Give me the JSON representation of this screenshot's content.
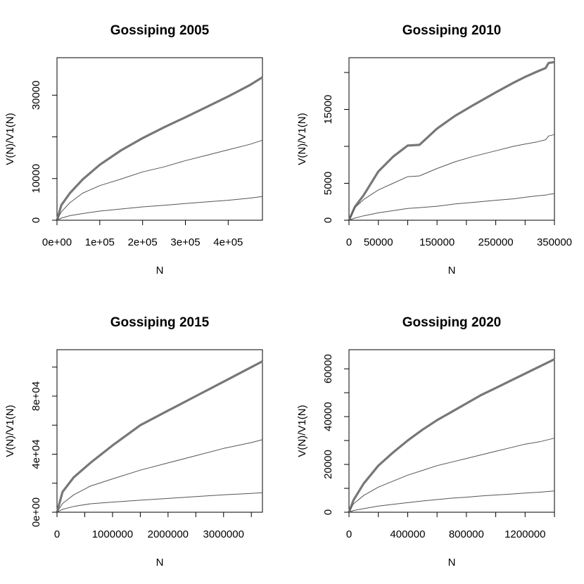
{
  "chart_data": [
    {
      "type": "line",
      "title": "Gossiping 2005",
      "xlabel": "N",
      "ylabel": "V(N)/V1(N)",
      "xlim": [
        0,
        480000
      ],
      "ylim": [
        0,
        39000
      ],
      "xticks": [
        0,
        100000,
        200000,
        300000,
        400000
      ],
      "xtick_labels": [
        "0e+00",
        "1e+05",
        "2e+05",
        "3e+05",
        "4e+05"
      ],
      "yticks": [
        0,
        10000,
        20000,
        30000
      ],
      "ytick_labels": [
        "0",
        "10000",
        "",
        "30000"
      ],
      "grid": false,
      "series": [
        {
          "x": [
            0,
            10000,
            30000,
            60000,
            100000,
            150000,
            200000,
            250000,
            300000,
            350000,
            400000,
            450000,
            480000
          ],
          "values": [
            0,
            3600,
            6500,
            9800,
            13300,
            16800,
            19700,
            22300,
            24700,
            27200,
            29700,
            32400,
            34300
          ],
          "color": "#777777",
          "width": 3.2
        },
        {
          "x": [
            0,
            10000,
            30000,
            60000,
            100000,
            150000,
            200000,
            250000,
            300000,
            350000,
            400000,
            450000,
            480000
          ],
          "values": [
            0,
            2000,
            4200,
            6500,
            8300,
            9900,
            11600,
            12800,
            14300,
            15600,
            16900,
            18200,
            19200
          ],
          "color": "#555555",
          "width": 1
        },
        {
          "x": [
            0,
            10000,
            30000,
            60000,
            100000,
            150000,
            200000,
            250000,
            300000,
            350000,
            400000,
            450000,
            480000
          ],
          "values": [
            0,
            500,
            1100,
            1600,
            2200,
            2700,
            3200,
            3600,
            4000,
            4400,
            4800,
            5300,
            5700
          ],
          "color": "#555555",
          "width": 1
        }
      ]
    },
    {
      "type": "line",
      "title": "Gossiping 2010",
      "xlabel": "N",
      "ylabel": "V(N)/V1(N)",
      "xlim": [
        0,
        350000
      ],
      "ylim": [
        0,
        22000
      ],
      "xticks": [
        0,
        50000,
        100000,
        150000,
        200000,
        250000,
        300000,
        350000
      ],
      "xtick_labels": [
        "0",
        "50000",
        "",
        "150000",
        "",
        "250000",
        "",
        "350000"
      ],
      "yticks": [
        0,
        5000,
        10000,
        15000,
        20000
      ],
      "ytick_labels": [
        "0",
        "5000",
        "",
        "15000",
        ""
      ],
      "grid": false,
      "series": [
        {
          "x": [
            0,
            10000,
            25000,
            50000,
            75000,
            100000,
            120000,
            150000,
            180000,
            210000,
            250000,
            280000,
            300000,
            320000,
            335000,
            340000,
            350000
          ],
          "values": [
            0,
            1800,
            3400,
            6600,
            8600,
            10100,
            10200,
            12400,
            14100,
            15500,
            17300,
            18600,
            19400,
            20100,
            20600,
            21300,
            21400
          ],
          "color": "#777777",
          "width": 3.2
        },
        {
          "x": [
            0,
            10000,
            25000,
            50000,
            75000,
            100000,
            120000,
            150000,
            180000,
            210000,
            250000,
            280000,
            300000,
            320000,
            335000,
            340000,
            350000
          ],
          "values": [
            0,
            1700,
            2800,
            4100,
            5000,
            5900,
            6000,
            7000,
            7900,
            8600,
            9400,
            10000,
            10300,
            10600,
            10900,
            11400,
            11600
          ],
          "color": "#555555",
          "width": 1
        },
        {
          "x": [
            0,
            10000,
            25000,
            50000,
            75000,
            100000,
            120000,
            150000,
            180000,
            210000,
            250000,
            280000,
            300000,
            320000,
            335000,
            340000,
            350000
          ],
          "values": [
            0,
            300,
            600,
            1000,
            1300,
            1600,
            1700,
            1900,
            2200,
            2400,
            2700,
            2900,
            3100,
            3300,
            3400,
            3500,
            3600
          ],
          "color": "#555555",
          "width": 1
        }
      ]
    },
    {
      "type": "line",
      "title": "Gossiping 2015",
      "xlabel": "N",
      "ylabel": "V(N)/V1(N)",
      "xlim": [
        0,
        3700000
      ],
      "ylim": [
        0,
        112000
      ],
      "xticks": [
        0,
        500000,
        1000000,
        1500000,
        2000000,
        2500000,
        3000000,
        3500000
      ],
      "xtick_labels": [
        "0",
        "",
        "1000000",
        "",
        "2000000",
        "",
        "3000000",
        ""
      ],
      "yticks": [
        0,
        20000,
        40000,
        60000,
        80000,
        100000
      ],
      "ytick_labels": [
        "0e+00",
        "",
        "4e+04",
        "",
        "8e+04",
        ""
      ],
      "grid": false,
      "series": [
        {
          "x": [
            0,
            100000,
            300000,
            600000,
            1000000,
            1500000,
            2000000,
            2500000,
            3000000,
            3500000,
            3700000
          ],
          "values": [
            0,
            14000,
            24000,
            34000,
            46000,
            60000,
            70000,
            80000,
            90000,
            100000,
            104000
          ],
          "color": "#777777",
          "width": 3.2
        },
        {
          "x": [
            0,
            100000,
            300000,
            600000,
            1000000,
            1500000,
            2000000,
            2500000,
            3000000,
            3500000,
            3700000
          ],
          "values": [
            0,
            6000,
            12000,
            18000,
            23000,
            29000,
            34000,
            39000,
            44000,
            48000,
            50000
          ],
          "color": "#555555",
          "width": 1
        },
        {
          "x": [
            0,
            100000,
            300000,
            600000,
            1000000,
            1500000,
            2000000,
            2500000,
            3000000,
            3500000,
            3700000
          ],
          "values": [
            0,
            2000,
            4000,
            5800,
            7000,
            8300,
            9500,
            10800,
            12000,
            13000,
            13500
          ],
          "color": "#555555",
          "width": 1
        }
      ]
    },
    {
      "type": "line",
      "title": "Gossiping 2020",
      "xlabel": "N",
      "ylabel": "V(N)/V1(N)",
      "xlim": [
        0,
        1400000
      ],
      "ylim": [
        0,
        68000
      ],
      "xticks": [
        0,
        200000,
        400000,
        600000,
        800000,
        1000000,
        1200000,
        1400000
      ],
      "xtick_labels": [
        "0",
        "",
        "400000",
        "",
        "800000",
        "",
        "1200000",
        ""
      ],
      "yticks": [
        0,
        10000,
        20000,
        30000,
        40000,
        50000,
        60000
      ],
      "ytick_labels": [
        "0",
        "",
        "20000",
        "",
        "40000",
        "",
        "60000"
      ],
      "grid": false,
      "series": [
        {
          "x": [
            0,
            30000,
            100000,
            200000,
            300000,
            400000,
            500000,
            600000,
            700000,
            800000,
            900000,
            1000000,
            1100000,
            1200000,
            1300000,
            1400000
          ],
          "values": [
            0,
            5000,
            12000,
            19500,
            25000,
            30000,
            34500,
            38500,
            42000,
            45500,
            49000,
            52000,
            55000,
            58000,
            61000,
            64000
          ],
          "color": "#777777",
          "width": 3.2
        },
        {
          "x": [
            0,
            30000,
            100000,
            200000,
            300000,
            400000,
            500000,
            600000,
            700000,
            800000,
            900000,
            1000000,
            1100000,
            1200000,
            1300000,
            1400000
          ],
          "values": [
            0,
            3500,
            7000,
            10500,
            13000,
            15500,
            17500,
            19500,
            21000,
            22500,
            24000,
            25500,
            27000,
            28500,
            29500,
            31000
          ],
          "color": "#555555",
          "width": 1
        },
        {
          "x": [
            0,
            30000,
            100000,
            200000,
            300000,
            400000,
            500000,
            600000,
            700000,
            800000,
            900000,
            1000000,
            1100000,
            1200000,
            1300000,
            1400000
          ],
          "values": [
            0,
            700,
            1500,
            2600,
            3300,
            4000,
            4700,
            5300,
            5900,
            6300,
            6800,
            7200,
            7600,
            8000,
            8400,
            8900
          ],
          "color": "#555555",
          "width": 1
        }
      ]
    }
  ]
}
